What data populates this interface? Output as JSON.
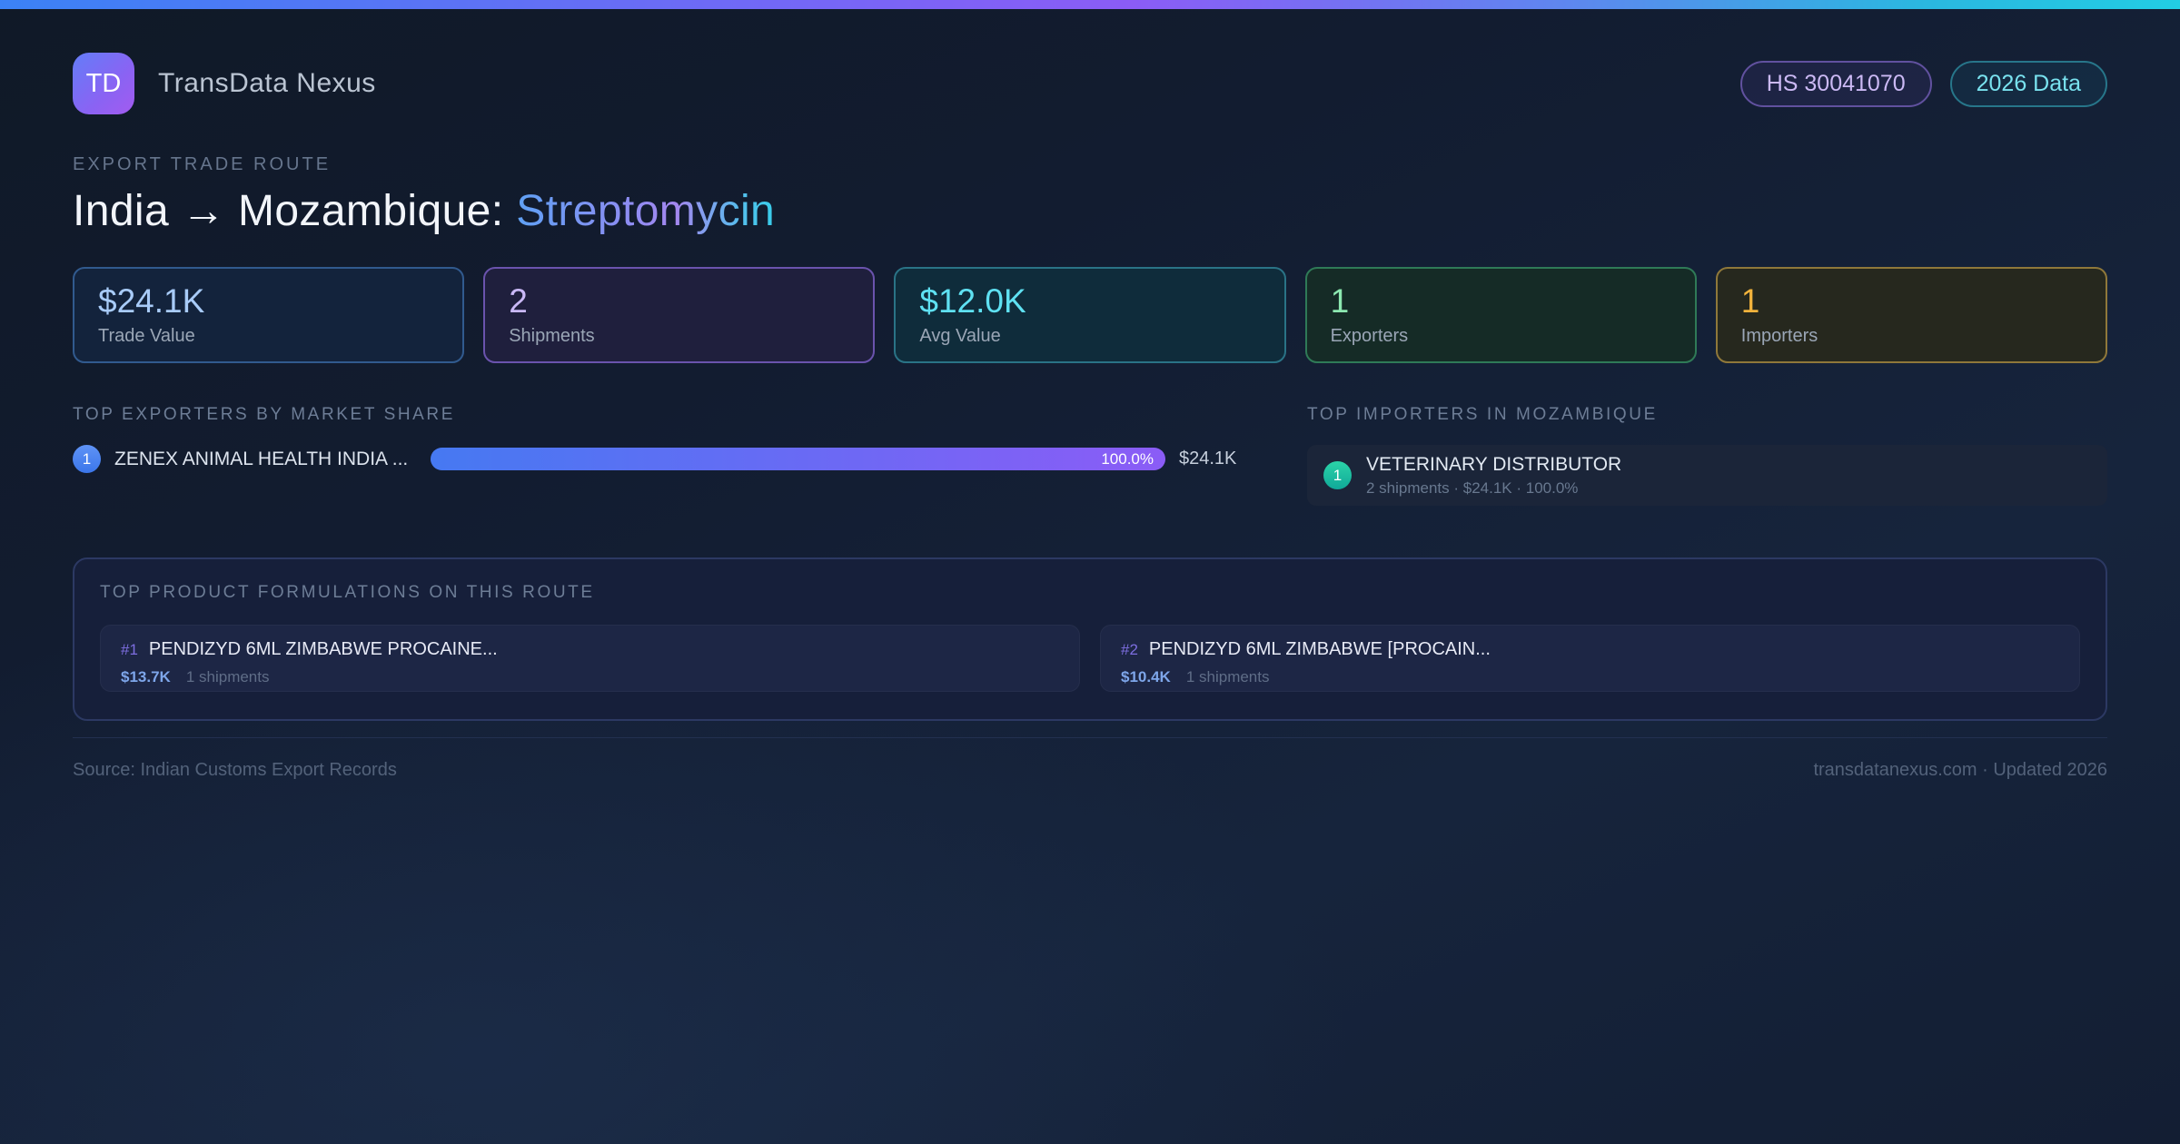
{
  "header": {
    "logo_text": "TD",
    "app_name": "TransData Nexus",
    "hs_code_badge": "HS 30041070",
    "year_badge": "2026 Data"
  },
  "route": {
    "eyebrow": "EXPORT TRADE ROUTE",
    "title_main": "India → Mozambique: ",
    "product": "Streptomycin"
  },
  "stats": [
    {
      "value": "$24.1K",
      "label": "Trade Value",
      "accent": "#a8cbf8"
    },
    {
      "value": "2",
      "label": "Shipments",
      "accent": "#c9b8f6"
    },
    {
      "value": "$12.0K",
      "label": "Avg Value",
      "accent": "#5fe1f2"
    },
    {
      "value": "1",
      "label": "Exporters",
      "accent": "#8ce8b0"
    },
    {
      "value": "1",
      "label": "Importers",
      "accent": "#f2b33c"
    }
  ],
  "exporters": {
    "heading": "TOP EXPORTERS BY MARKET SHARE",
    "items": [
      {
        "rank": "1",
        "name": "ZENEX ANIMAL HEALTH INDIA ...",
        "share_pct_label": "100.0%",
        "share_pct": 100.0,
        "value": "$24.1K"
      }
    ]
  },
  "importers": {
    "heading": "TOP IMPORTERS IN MOZAMBIQUE",
    "items": [
      {
        "rank": "1",
        "name": "VETERINARY DISTRIBUTOR",
        "details": "2 shipments · $24.1K · 100.0%"
      }
    ]
  },
  "formulations": {
    "heading": "TOP PRODUCT FORMULATIONS ON THIS ROUTE",
    "items": [
      {
        "rank": "#1",
        "name": "PENDIZYD 6ML ZIMBABWE PROCAINE...",
        "value": "$13.7K",
        "shipments": "1 shipments"
      },
      {
        "rank": "#2",
        "name": "PENDIZYD 6ML ZIMBABWE [PROCAIN...",
        "value": "$10.4K",
        "shipments": "1 shipments"
      }
    ]
  },
  "footer": {
    "source": "Source: Indian Customs Export Records",
    "site": "transdatanexus.com · Updated 2026"
  },
  "colors": {
    "accent_bar": [
      "#3b82f6",
      "#8b5cf6",
      "#22cde4"
    ],
    "bar_gradient": [
      "#4679f2",
      "#8b5cf6"
    ],
    "hs_badge_text": "#cbb9f4",
    "year_badge_text": "#79e2ef",
    "background": "#131e33"
  }
}
